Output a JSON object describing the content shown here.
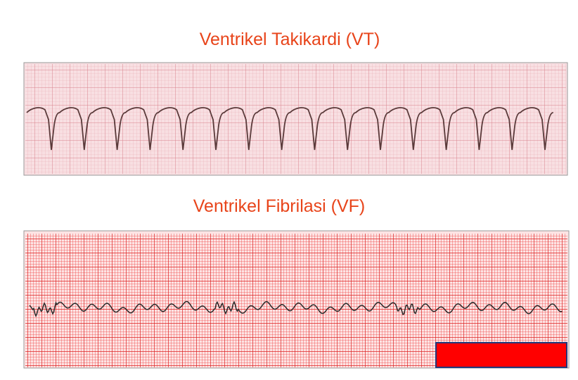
{
  "slide": {
    "title_vt": "Ventrikel Takikardi (VT)",
    "title_vf": "Ventrikel Fibrilasi (VF)"
  }
}
